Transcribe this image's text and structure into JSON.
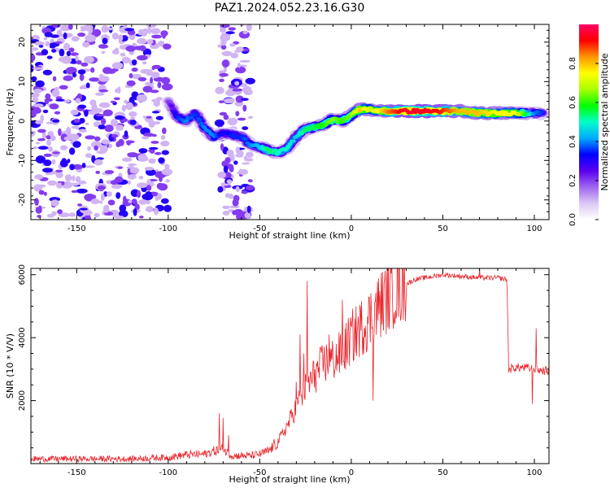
{
  "title": "PAZ1.2024.052.23.16.G30",
  "chart_data": [
    {
      "type": "heatmap",
      "xlabel": "Height of straight line (km)",
      "ylabel": "Frequency (Hz)",
      "xlim": [
        -175,
        108
      ],
      "ylim": [
        -25,
        24.5
      ],
      "xticks": [
        -150,
        -100,
        -50,
        0,
        50,
        100
      ],
      "yticks": [
        -20,
        -10,
        0,
        10,
        20
      ],
      "colorbar": {
        "label": "Normalized spectral amplitude",
        "range": [
          0,
          1
        ],
        "ticks": [
          "0.0",
          "0.2",
          "0.4",
          "0.6",
          "0.8"
        ],
        "colormap": [
          "#ffffff",
          "#dcc8f5",
          "#a064f0",
          "#5a00f0",
          "#0000ff",
          "#00aaff",
          "#00ffc8",
          "#00ff00",
          "#aaff00",
          "#ffff00",
          "#ff9600",
          "#ff0000",
          "#ff0064"
        ]
      },
      "ridge": {
        "x": [
          -100,
          -95,
          -90,
          -85,
          -80,
          -75,
          -70,
          -65,
          -60,
          -55,
          -50,
          -45,
          -40,
          -35,
          -30,
          -25,
          -20,
          -15,
          -10,
          -5,
          0,
          5,
          10,
          15,
          20,
          30,
          40,
          50,
          60,
          70,
          80,
          90,
          95,
          100,
          105
        ],
        "y": [
          5,
          1,
          0,
          2,
          -2,
          -4,
          -3,
          -3.5,
          -4,
          -6,
          -6.5,
          -7.5,
          -8,
          -7,
          -4,
          -2,
          -1.5,
          -1,
          0.5,
          0,
          1.5,
          3,
          3,
          2.5,
          2.5,
          2.5,
          2.5,
          2.5,
          2.5,
          2,
          2,
          2,
          2,
          2,
          2
        ],
        "amplitude": [
          0.2,
          0.35,
          0.4,
          0.35,
          0.4,
          0.4,
          0.3,
          0.35,
          0.35,
          0.4,
          0.45,
          0.55,
          0.5,
          0.5,
          0.45,
          0.55,
          0.55,
          0.6,
          0.65,
          0.6,
          0.65,
          0.8,
          0.7,
          0.75,
          0.85,
          0.95,
          0.95,
          0.9,
          0.8,
          0.8,
          0.75,
          0.75,
          0.6,
          0.4,
          0.35
        ]
      },
      "noise_region": {
        "xmin": -175,
        "xmax": -100,
        "level": 0.2
      },
      "noise_band": {
        "xmin": -72,
        "xmax": -55,
        "level": 0.2
      }
    },
    {
      "type": "line",
      "xlabel": "Height of straight line (km)",
      "ylabel": "SNR (10 * V/V)",
      "xlim": [
        -175,
        108
      ],
      "ylim": [
        0,
        6200
      ],
      "xticks": [
        -150,
        -100,
        -50,
        0,
        50,
        100
      ],
      "yticks": [
        2000,
        4000,
        6000
      ],
      "color": "#e8262c",
      "trend": {
        "x": [
          -175,
          -150,
          -120,
          -100,
          -90,
          -80,
          -75,
          -70,
          -65,
          -60,
          -55,
          -50,
          -45,
          -40,
          -35,
          -30,
          -25,
          -20,
          -15,
          -10,
          -5,
          0,
          5,
          10,
          15,
          20,
          25,
          30,
          35,
          40,
          50,
          60,
          70,
          80,
          85,
          86,
          90,
          95,
          100,
          105,
          108
        ],
        "y": [
          150,
          150,
          150,
          200,
          280,
          300,
          400,
          450,
          250,
          250,
          250,
          300,
          400,
          700,
          1200,
          1800,
          2400,
          2800,
          3200,
          3300,
          3500,
          4000,
          4300,
          4600,
          5000,
          5300,
          5550,
          5700,
          5850,
          5900,
          6000,
          5950,
          5900,
          5900,
          5850,
          3000,
          3050,
          3050,
          3000,
          2950,
          2950
        ]
      },
      "spikes": {
        "x": [
          -72,
          -70,
          -67,
          -30,
          -28,
          -26,
          -24,
          -20,
          -12,
          -5,
          12,
          70,
          99,
          101
        ],
        "y": [
          1600,
          1450,
          900,
          2600,
          4100,
          3500,
          5800,
          3000,
          4100,
          5200,
          2000,
          6200,
          1900,
          4300
        ]
      }
    }
  ]
}
